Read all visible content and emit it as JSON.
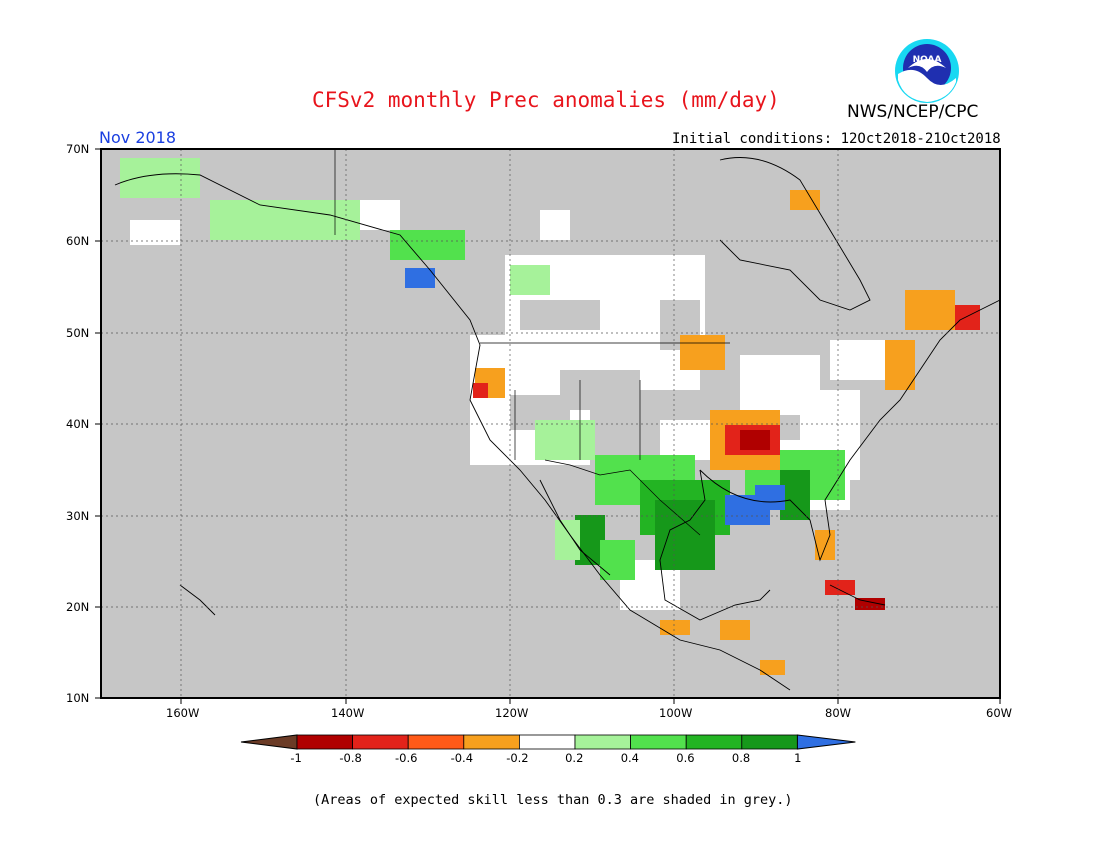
{
  "title": "CFSv2 monthly Prec anomalies (mm/day)",
  "agency": "NWS/NCEP/CPC",
  "logo_text": "NOAA",
  "month_label": "Nov 2018",
  "initial_conditions": "Initial conditions: 12Oct2018-21Oct2018",
  "footnote": "(Areas of expected skill less than 0.3 are shaded in grey.)",
  "lat_labels": [
    "70N",
    "60N",
    "50N",
    "40N",
    "30N",
    "20N",
    "10N"
  ],
  "lon_labels": [
    "160W",
    "140W",
    "120W",
    "100W",
    "80W",
    "60W"
  ],
  "colorbar": {
    "ticks": [
      "-1",
      "-0.8",
      "-0.6",
      "-0.4",
      "-0.2",
      "0.2",
      "0.4",
      "0.6",
      "0.8",
      "1"
    ],
    "colors": [
      "#6b3b26",
      "#b00000",
      "#e2231a",
      "#ff5a18",
      "#f7a01e",
      "#ffffff",
      "#a6f29a",
      "#52e14d",
      "#23b423",
      "#16981a",
      "#2f6fe2"
    ]
  },
  "colors": {
    "ocean": "#c6c6c6",
    "land_grey": "#c6c6c6",
    "neutral": "#ffffff",
    "title": "#e8141c",
    "month": "#1a3fe0"
  }
}
